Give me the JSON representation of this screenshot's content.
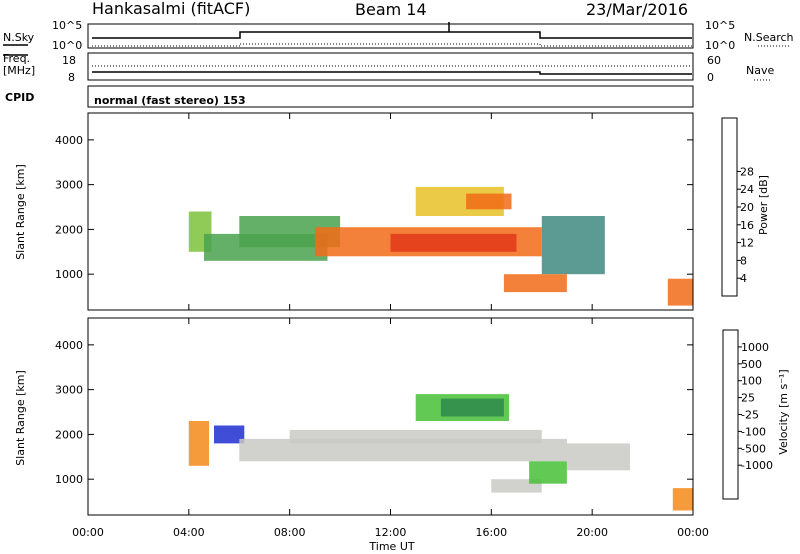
{
  "header": {
    "station": "Hankasalmi (fitACF)",
    "beam": "Beam 14",
    "date": "23/Mar/2016"
  },
  "panels": {
    "nsky": {
      "left_label": "N.Sky",
      "left_ticks": [
        "10^5",
        "10^0"
      ],
      "right_ticks": [
        "10^5",
        "10^0"
      ],
      "right_label": "N.Search"
    },
    "freq": {
      "left_label_1": "Freq.",
      "left_label_2": "[MHz]",
      "left_ticks": [
        "18",
        "8"
      ],
      "right_ticks": [
        "60",
        "0"
      ],
      "right_label": "Nave"
    },
    "cpid": {
      "left_label": "CPID",
      "text": "normal (fast stereo) 153"
    }
  },
  "chart_data": [
    {
      "type": "heatmap",
      "title": "",
      "xlabel": "Time UT",
      "ylabel": "Slant Range [km]",
      "x_ticks": [
        "00:00",
        "04:00",
        "08:00",
        "12:00",
        "16:00",
        "20:00",
        "00:00"
      ],
      "xlim": [
        0,
        24
      ],
      "y_ticks": [
        1000,
        2000,
        3000,
        4000
      ],
      "ylim": [
        200,
        4600
      ],
      "colorbar": {
        "label": "Power [dB]",
        "ticks": [
          "4",
          "8",
          "12",
          "16",
          "20",
          "24",
          "28"
        ],
        "colors": [
          "#1e27e6",
          "#2f5ec9",
          "#3e8a80",
          "#4aa24d",
          "#7dc23b",
          "#e8c128",
          "#f39b1b",
          "#f26b16",
          "#e2381a",
          "#ee1c1c"
        ]
      },
      "regions": [
        {
          "t0": 4.0,
          "t1": 4.9,
          "r0": 1500,
          "r1": 2400,
          "level": 4
        },
        {
          "t0": 4.6,
          "t1": 9.5,
          "r0": 1300,
          "r1": 1900,
          "level": 3
        },
        {
          "t0": 6.0,
          "t1": 10.0,
          "r0": 1600,
          "r1": 2300,
          "level": 3
        },
        {
          "t0": 9.0,
          "t1": 18.0,
          "r0": 1400,
          "r1": 2050,
          "level": 7
        },
        {
          "t0": 12.0,
          "t1": 17.0,
          "r0": 1500,
          "r1": 1900,
          "level": 8
        },
        {
          "t0": 13.0,
          "t1": 16.5,
          "r0": 2300,
          "r1": 2950,
          "level": 5
        },
        {
          "t0": 15.0,
          "t1": 16.8,
          "r0": 2450,
          "r1": 2800,
          "level": 7
        },
        {
          "t0": 18.0,
          "t1": 20.5,
          "r0": 1000,
          "r1": 2300,
          "level": 2
        },
        {
          "t0": 16.5,
          "t1": 19.0,
          "r0": 600,
          "r1": 1000,
          "level": 7
        },
        {
          "t0": 23.0,
          "t1": 24.0,
          "r0": 300,
          "r1": 900,
          "level": 7
        }
      ]
    },
    {
      "type": "heatmap",
      "title": "",
      "xlabel": "Time UT",
      "ylabel": "Slant Range [km]",
      "x_ticks": [
        "00:00",
        "04:00",
        "08:00",
        "12:00",
        "16:00",
        "20:00",
        "00:00"
      ],
      "xlim": [
        0,
        24
      ],
      "y_ticks": [
        1000,
        2000,
        3000,
        4000
      ],
      "ylim": [
        200,
        4600
      ],
      "colorbar": {
        "label": "Velocity [m s⁻¹]",
        "ticks": [
          "1000",
          "500",
          "100",
          "25",
          "-25",
          "-100",
          "-500",
          "-1000"
        ],
        "colors": [
          "#1e2fd0",
          "#2c57b8",
          "#2e8a4e",
          "#46c136",
          "#c9c9c4",
          "#c9c9c4",
          "#f3b21f",
          "#f38a1a",
          "#ee5a1a",
          "#e21d1d"
        ]
      },
      "regions": [
        {
          "t0": 4.0,
          "t1": 4.8,
          "r0": 1300,
          "r1": 2300,
          "level": 7
        },
        {
          "t0": 5.0,
          "t1": 6.2,
          "r0": 1800,
          "r1": 2200,
          "level": 0
        },
        {
          "t0": 6.0,
          "t1": 19.0,
          "r0": 1400,
          "r1": 1900,
          "level": 4
        },
        {
          "t0": 8.0,
          "t1": 18.0,
          "r0": 1800,
          "r1": 2100,
          "level": 4
        },
        {
          "t0": 13.0,
          "t1": 16.7,
          "r0": 2300,
          "r1": 2900,
          "level": 3
        },
        {
          "t0": 14.0,
          "t1": 16.5,
          "r0": 2400,
          "r1": 2800,
          "level": 2
        },
        {
          "t0": 16.0,
          "t1": 18.0,
          "r0": 700,
          "r1": 1000,
          "level": 4
        },
        {
          "t0": 17.5,
          "t1": 19.0,
          "r0": 900,
          "r1": 1400,
          "level": 3
        },
        {
          "t0": 19.0,
          "t1": 21.5,
          "r0": 1200,
          "r1": 1800,
          "level": 4
        },
        {
          "t0": 23.2,
          "t1": 24.0,
          "r0": 300,
          "r1": 800,
          "level": 7
        }
      ]
    }
  ]
}
